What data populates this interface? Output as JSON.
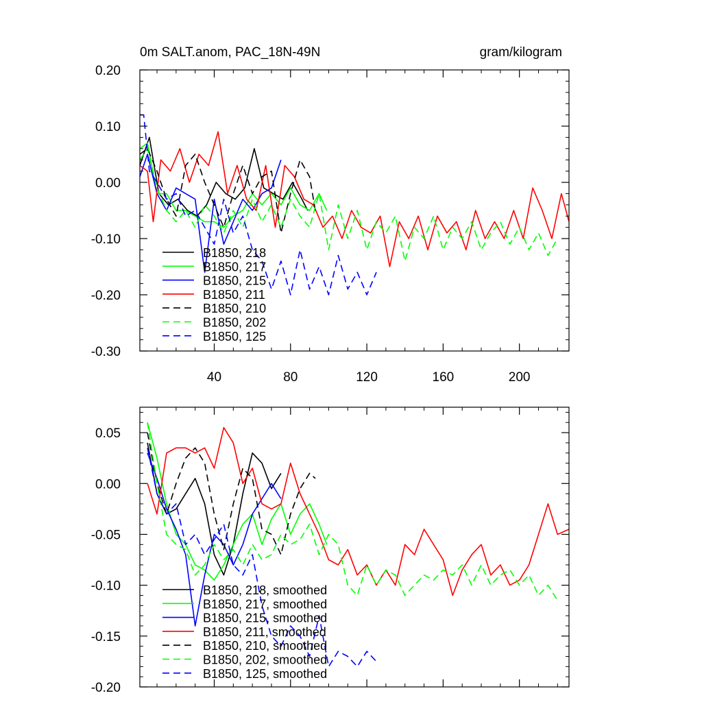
{
  "chart_data": [
    {
      "type": "line",
      "title": "0m SALT.anom, PAC_18N-49N",
      "units": "gram/kilogram",
      "xlim": [
        1,
        226
      ],
      "ylim": [
        -0.3,
        0.2
      ],
      "xticks": [
        40,
        80,
        120,
        160,
        200
      ],
      "xtick_labels": [
        "40",
        "80",
        "120",
        "160",
        "200"
      ],
      "yticks": [
        -0.3,
        -0.2,
        -0.1,
        0.0,
        0.1,
        0.2
      ],
      "ytick_labels": [
        "-0.30",
        "-0.20",
        "-0.10",
        "0.00",
        "0.10",
        "0.20"
      ],
      "legend_placement": "lower-left",
      "series": [
        {
          "name": "B1850, 218",
          "color": "#000000",
          "dash": "solid",
          "x": [
            1,
            6,
            11,
            16,
            21,
            26,
            31,
            36,
            41,
            46,
            51,
            56,
            61,
            66,
            71,
            76,
            81,
            86,
            89
          ],
          "y": [
            0.03,
            0.08,
            -0.02,
            -0.04,
            -0.03,
            -0.05,
            -0.06,
            -0.04,
            0.0,
            -0.02,
            -0.03,
            -0.01,
            0.06,
            -0.01,
            -0.02,
            -0.03,
            0.0,
            -0.03,
            -0.05
          ]
        },
        {
          "name": "B1850, 217",
          "color": "#00ff00",
          "dash": "solid",
          "x": [
            1,
            5,
            10,
            15,
            20,
            25,
            30,
            35,
            40,
            45,
            50,
            55,
            60,
            65,
            70,
            75,
            80,
            85,
            90,
            95,
            99
          ],
          "y": [
            0.06,
            0.07,
            -0.02,
            -0.02,
            -0.05,
            -0.05,
            -0.06,
            -0.07,
            -0.07,
            -0.08,
            -0.06,
            -0.05,
            -0.02,
            -0.04,
            -0.02,
            -0.04,
            -0.01,
            -0.04,
            -0.05,
            -0.02,
            -0.05
          ]
        },
        {
          "name": "B1850, 215",
          "color": "#0000ff",
          "dash": "solid",
          "x": [
            1,
            5,
            10,
            15,
            20,
            25,
            30,
            35,
            40,
            45,
            50,
            55,
            60,
            65,
            70,
            75
          ],
          "y": [
            0.01,
            0.05,
            -0.02,
            -0.05,
            -0.01,
            -0.02,
            -0.03,
            -0.16,
            -0.03,
            -0.11,
            -0.07,
            -0.03,
            -0.05,
            -0.02,
            -0.01,
            0.04
          ]
        },
        {
          "name": "B1850, 211",
          "color": "#ff0000",
          "dash": "solid",
          "x": [
            1,
            5,
            8,
            12,
            17,
            22,
            27,
            32,
            37,
            42,
            47,
            52,
            57,
            62,
            67,
            72,
            77,
            82,
            87,
            92,
            97,
            102,
            107,
            112,
            117,
            122,
            127,
            132,
            137,
            142,
            147,
            152,
            157,
            162,
            167,
            172,
            177,
            182,
            187,
            192,
            197,
            202,
            207,
            212,
            217,
            222,
            226
          ],
          "y": [
            0.03,
            0.02,
            -0.07,
            0.04,
            0.02,
            0.06,
            0.0,
            0.05,
            0.03,
            0.09,
            -0.02,
            0.03,
            -0.03,
            -0.05,
            0.03,
            -0.08,
            0.03,
            0.01,
            -0.03,
            -0.04,
            -0.08,
            -0.06,
            -0.1,
            -0.05,
            -0.08,
            -0.09,
            -0.06,
            -0.15,
            -0.07,
            -0.1,
            -0.06,
            -0.12,
            -0.06,
            -0.09,
            -0.07,
            -0.12,
            -0.05,
            -0.1,
            -0.07,
            -0.1,
            -0.05,
            -0.1,
            -0.01,
            -0.05,
            -0.1,
            -0.02,
            -0.07
          ]
        },
        {
          "name": "B1850, 210",
          "color": "#000000",
          "dash": "dash",
          "x": [
            1,
            5,
            10,
            15,
            20,
            25,
            30,
            35,
            40,
            45,
            50,
            55,
            60,
            65,
            70,
            75,
            80,
            85,
            90,
            93
          ],
          "y": [
            0.05,
            0.06,
            0.02,
            -0.03,
            -0.06,
            0.03,
            0.05,
            0.0,
            -0.04,
            -0.08,
            -0.02,
            0.03,
            -0.02,
            0.01,
            0.02,
            -0.09,
            -0.02,
            0.04,
            0.01,
            -0.05
          ]
        },
        {
          "name": "B1850, 202",
          "color": "#00ff00",
          "dash": "dash",
          "x": [
            1,
            5,
            10,
            15,
            20,
            25,
            30,
            35,
            40,
            45,
            50,
            55,
            60,
            65,
            70,
            75,
            80,
            85,
            90,
            95,
            100,
            105,
            110,
            115,
            120,
            125,
            130,
            135,
            140,
            145,
            150,
            155,
            160,
            165,
            170,
            175,
            180,
            185,
            190,
            195,
            200,
            205,
            210,
            215,
            220
          ],
          "y": [
            0.04,
            0.06,
            -0.01,
            -0.05,
            -0.07,
            -0.05,
            -0.08,
            -0.04,
            -0.06,
            -0.09,
            -0.05,
            -0.08,
            -0.03,
            -0.07,
            -0.04,
            -0.08,
            -0.03,
            -0.06,
            -0.08,
            -0.02,
            -0.12,
            -0.04,
            -0.1,
            -0.05,
            -0.12,
            -0.07,
            -0.09,
            -0.06,
            -0.14,
            -0.08,
            -0.1,
            -0.06,
            -0.12,
            -0.08,
            -0.1,
            -0.07,
            -0.12,
            -0.09,
            -0.07,
            -0.11,
            -0.08,
            -0.12,
            -0.09,
            -0.13,
            -0.1
          ]
        },
        {
          "name": "B1850, 125",
          "color": "#0000ff",
          "dash": "dash",
          "x": [
            1,
            3,
            6,
            10,
            15,
            20,
            25,
            30,
            35,
            40,
            45,
            50,
            55,
            60,
            65,
            70,
            75,
            80,
            85,
            90,
            95,
            100,
            105,
            110,
            115,
            120,
            125
          ],
          "y": [
            0.12,
            0.12,
            0.02,
            0.0,
            -0.03,
            -0.02,
            -0.06,
            -0.05,
            -0.08,
            -0.11,
            -0.03,
            -0.09,
            -0.06,
            -0.12,
            -0.14,
            -0.19,
            -0.14,
            -0.2,
            -0.12,
            -0.19,
            -0.15,
            -0.2,
            -0.13,
            -0.19,
            -0.16,
            -0.2,
            -0.16
          ]
        }
      ]
    },
    {
      "type": "line",
      "title": "",
      "xlim": [
        1,
        226
      ],
      "ylim": [
        -0.2,
        0.075
      ],
      "xticks": [
        40,
        80,
        120,
        160,
        200
      ],
      "xtick_labels": [],
      "yticks": [
        -0.2,
        -0.15,
        -0.1,
        -0.05,
        0.0,
        0.05
      ],
      "ytick_labels": [
        "-0.20",
        "-0.15",
        "-0.10",
        "-0.05",
        "0.00",
        "0.05"
      ],
      "legend_placement": "lower-left",
      "series": [
        {
          "name": "B1850, 218, smoothed",
          "color": "#000000",
          "dash": "solid",
          "x": [
            5,
            10,
            15,
            20,
            25,
            30,
            35,
            40,
            45,
            50,
            55,
            60,
            65,
            70,
            75
          ],
          "y": [
            0.04,
            -0.01,
            -0.03,
            -0.025,
            -0.01,
            0.005,
            -0.02,
            -0.07,
            -0.09,
            -0.06,
            -0.01,
            0.03,
            0.02,
            -0.005,
            0.01
          ]
        },
        {
          "name": "B1850, 217, smoothed",
          "color": "#00ff00",
          "dash": "solid",
          "x": [
            5,
            10,
            15,
            20,
            25,
            30,
            35,
            40,
            45,
            50,
            55,
            60,
            65,
            70,
            75,
            80,
            85,
            90,
            95,
            99
          ],
          "y": [
            0.06,
            0.025,
            -0.02,
            -0.05,
            -0.06,
            -0.08,
            -0.085,
            -0.095,
            -0.08,
            -0.06,
            -0.04,
            -0.03,
            -0.06,
            -0.035,
            -0.02,
            -0.05,
            -0.03,
            -0.02,
            -0.04,
            -0.06
          ]
        },
        {
          "name": "B1850, 215, smoothed",
          "color": "#0000ff",
          "dash": "solid",
          "x": [
            5,
            10,
            15,
            20,
            25,
            30,
            35,
            40,
            45,
            50,
            55,
            60,
            65,
            70,
            75
          ],
          "y": [
            0.03,
            0.005,
            -0.025,
            -0.045,
            -0.07,
            -0.14,
            -0.09,
            -0.05,
            -0.06,
            -0.08,
            -0.06,
            -0.03,
            -0.015,
            0.0,
            -0.015
          ]
        },
        {
          "name": "B1850, 211, smoothed",
          "color": "#ff0000",
          "dash": "solid",
          "x": [
            5,
            10,
            15,
            20,
            25,
            30,
            35,
            40,
            45,
            50,
            55,
            60,
            65,
            70,
            75,
            80,
            85,
            90,
            95,
            100,
            105,
            110,
            115,
            120,
            125,
            130,
            135,
            140,
            145,
            150,
            155,
            160,
            165,
            170,
            175,
            180,
            185,
            190,
            195,
            200,
            205,
            210,
            215,
            220,
            226
          ],
          "y": [
            0.0,
            -0.03,
            0.03,
            0.035,
            0.035,
            0.03,
            0.035,
            0.015,
            0.055,
            0.04,
            0.0,
            0.015,
            -0.02,
            -0.025,
            -0.02,
            0.02,
            -0.01,
            -0.03,
            -0.05,
            -0.075,
            -0.08,
            -0.065,
            -0.09,
            -0.08,
            -0.1,
            -0.085,
            -0.1,
            -0.06,
            -0.07,
            -0.045,
            -0.06,
            -0.075,
            -0.11,
            -0.085,
            -0.07,
            -0.06,
            -0.09,
            -0.08,
            -0.1,
            -0.095,
            -0.08,
            -0.05,
            -0.02,
            -0.05,
            -0.045
          ]
        },
        {
          "name": "B1850, 210, smoothed",
          "color": "#000000",
          "dash": "dash",
          "x": [
            5,
            10,
            15,
            20,
            25,
            30,
            35,
            40,
            45,
            50,
            55,
            60,
            65,
            70,
            75,
            80,
            85,
            90,
            93
          ],
          "y": [
            0.05,
            0.0,
            -0.03,
            0.0,
            0.025,
            0.035,
            0.02,
            -0.03,
            -0.065,
            -0.02,
            0.015,
            0.005,
            -0.045,
            -0.05,
            -0.07,
            -0.03,
            -0.005,
            0.01,
            0.005
          ]
        },
        {
          "name": "B1850, 202, smoothed",
          "color": "#00ff00",
          "dash": "dash",
          "x": [
            5,
            10,
            15,
            20,
            25,
            30,
            35,
            40,
            45,
            50,
            55,
            60,
            65,
            70,
            75,
            80,
            85,
            90,
            95,
            100,
            105,
            110,
            115,
            120,
            125,
            130,
            135,
            140,
            145,
            150,
            155,
            160,
            165,
            170,
            175,
            180,
            185,
            190,
            195,
            200,
            205,
            210,
            215,
            220
          ],
          "y": [
            0.06,
            0.0,
            -0.05,
            -0.06,
            -0.065,
            -0.09,
            -0.08,
            -0.06,
            -0.075,
            -0.065,
            -0.08,
            -0.06,
            -0.075,
            -0.07,
            -0.05,
            -0.06,
            -0.055,
            -0.04,
            -0.07,
            -0.05,
            -0.06,
            -0.1,
            -0.11,
            -0.08,
            -0.1,
            -0.085,
            -0.09,
            -0.11,
            -0.1,
            -0.09,
            -0.095,
            -0.085,
            -0.09,
            -0.08,
            -0.1,
            -0.08,
            -0.1,
            -0.09,
            -0.085,
            -0.1,
            -0.09,
            -0.11,
            -0.1,
            -0.115
          ]
        },
        {
          "name": "B1850, 125, smoothed",
          "color": "#0000ff",
          "dash": "dash",
          "x": [
            5,
            10,
            15,
            20,
            25,
            30,
            35,
            40,
            45,
            50,
            55,
            60,
            65,
            70,
            75,
            80,
            85,
            90,
            95,
            100,
            105,
            110,
            115,
            120,
            125
          ],
          "y": [
            0.035,
            -0.01,
            -0.03,
            -0.02,
            -0.06,
            -0.05,
            -0.07,
            -0.055,
            -0.04,
            -0.08,
            -0.09,
            -0.07,
            -0.12,
            -0.15,
            -0.16,
            -0.14,
            -0.15,
            -0.17,
            -0.13,
            -0.18,
            -0.165,
            -0.17,
            -0.18,
            -0.165,
            -0.175
          ]
        }
      ]
    }
  ]
}
